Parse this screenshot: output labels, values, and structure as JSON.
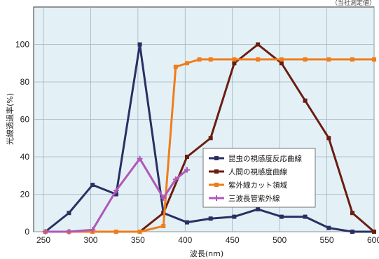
{
  "corner_note": "（当社測定値）",
  "chart_data": {
    "type": "line",
    "xlabel": "波長(nm)",
    "ylabel": "光線透過率(%)",
    "xlim": [
      250,
      600
    ],
    "ylim": [
      0,
      120
    ],
    "x_ticks": [
      250,
      300,
      350,
      400,
      450,
      500,
      550,
      600
    ],
    "y_ticks": [
      0,
      20,
      40,
      60,
      80,
      100
    ],
    "grid": true,
    "legend_position": "center-right",
    "series": [
      {
        "name": "昆虫の視感度反応曲線",
        "color": "#2b2f63",
        "marker": "square",
        "points": [
          [
            252,
            0
          ],
          [
            277,
            10
          ],
          [
            302,
            25
          ],
          [
            327,
            20
          ],
          [
            352,
            100
          ],
          [
            377,
            10
          ],
          [
            402,
            5
          ],
          [
            427,
            7
          ],
          [
            452,
            8
          ],
          [
            477,
            12
          ],
          [
            502,
            8
          ],
          [
            527,
            8
          ],
          [
            552,
            2
          ],
          [
            577,
            0
          ],
          [
            600,
            0
          ]
        ]
      },
      {
        "name": "人間の視感度曲線",
        "color": "#6b1d10",
        "marker": "square",
        "points": [
          [
            352,
            0
          ],
          [
            377,
            10
          ],
          [
            402,
            40
          ],
          [
            427,
            50
          ],
          [
            452,
            90
          ],
          [
            477,
            100
          ],
          [
            502,
            90
          ],
          [
            527,
            70
          ],
          [
            552,
            50
          ],
          [
            577,
            10
          ],
          [
            600,
            0
          ]
        ]
      },
      {
        "name": "紫外線カット領域",
        "color": "#f07d1a",
        "marker": "square",
        "points": [
          [
            252,
            0
          ],
          [
            277,
            0
          ],
          [
            302,
            0
          ],
          [
            327,
            0
          ],
          [
            352,
            0
          ],
          [
            377,
            3
          ],
          [
            390,
            88
          ],
          [
            402,
            90
          ],
          [
            415,
            92
          ],
          [
            427,
            92
          ],
          [
            452,
            92
          ],
          [
            477,
            92
          ],
          [
            502,
            92
          ],
          [
            527,
            92
          ],
          [
            552,
            92
          ],
          [
            577,
            92
          ],
          [
            600,
            92
          ]
        ]
      },
      {
        "name": "三波長管紫外線",
        "color": "#b057b8",
        "marker": "plus",
        "points": [
          [
            252,
            0
          ],
          [
            277,
            0
          ],
          [
            302,
            1
          ],
          [
            327,
            22
          ],
          [
            352,
            39
          ],
          [
            377,
            18
          ],
          [
            390,
            28
          ],
          [
            402,
            33
          ]
        ]
      }
    ]
  }
}
